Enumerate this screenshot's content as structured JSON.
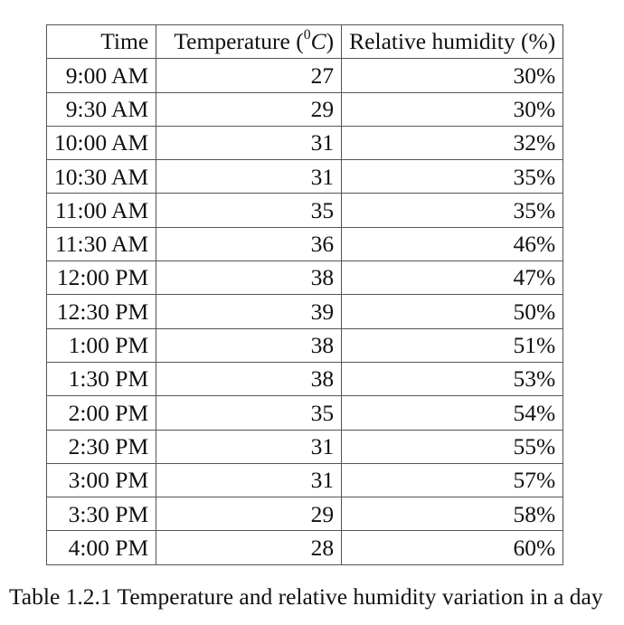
{
  "table": {
    "headers": {
      "time": "Time",
      "temperature_prefix": "Temperature (",
      "temperature_sup": "0",
      "temperature_unit": "C",
      "temperature_suffix": ")",
      "humidity": "Relative humidity (%)"
    },
    "rows": [
      {
        "time": "9:00 AM",
        "temperature": "27",
        "humidity": "30%"
      },
      {
        "time": "9:30 AM",
        "temperature": "29",
        "humidity": "30%"
      },
      {
        "time": "10:00 AM",
        "temperature": "31",
        "humidity": "32%"
      },
      {
        "time": "10:30 AM",
        "temperature": "31",
        "humidity": "35%"
      },
      {
        "time": "11:00 AM",
        "temperature": "35",
        "humidity": "35%"
      },
      {
        "time": "11:30 AM",
        "temperature": "36",
        "humidity": "46%"
      },
      {
        "time": "12:00 PM",
        "temperature": "38",
        "humidity": "47%"
      },
      {
        "time": "12:30 PM",
        "temperature": "39",
        "humidity": "50%"
      },
      {
        "time": "1:00 PM",
        "temperature": "38",
        "humidity": "51%"
      },
      {
        "time": "1:30 PM",
        "temperature": "38",
        "humidity": "53%"
      },
      {
        "time": "2:00 PM",
        "temperature": "35",
        "humidity": "54%"
      },
      {
        "time": "2:30 PM",
        "temperature": "31",
        "humidity": "55%"
      },
      {
        "time": "3:00 PM",
        "temperature": "31",
        "humidity": "57%"
      },
      {
        "time": "3:30 PM",
        "temperature": "29",
        "humidity": "58%"
      },
      {
        "time": "4:00 PM",
        "temperature": "28",
        "humidity": "60%"
      }
    ]
  },
  "caption": "Table 1.2.1 Temperature and relative humidity variation in a day"
}
